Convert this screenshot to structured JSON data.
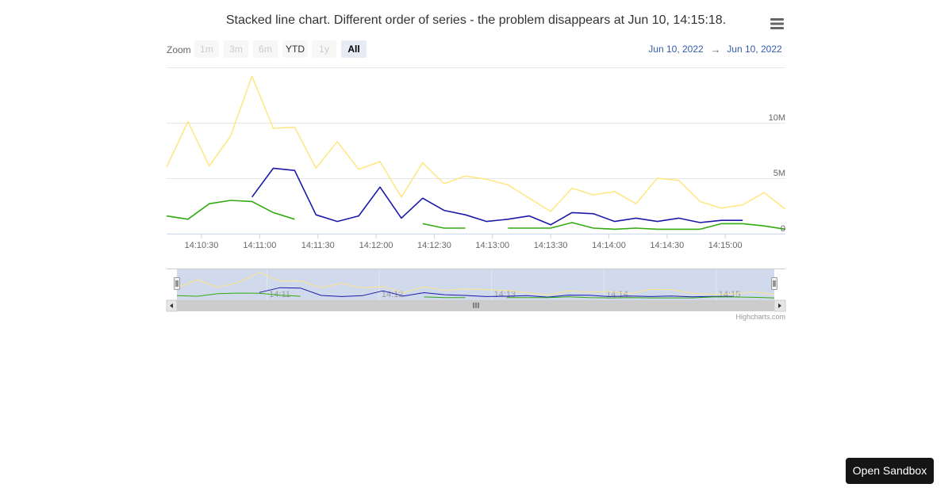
{
  "title": "Stacked line chart. Different order of series - the problem disappears at Jun 10, 14:15:18.",
  "range_selector": {
    "zoom_label": "Zoom",
    "buttons": [
      {
        "label": "1m",
        "state": "disabled"
      },
      {
        "label": "3m",
        "state": "disabled"
      },
      {
        "label": "6m",
        "state": "disabled"
      },
      {
        "label": "YTD",
        "state": "normal"
      },
      {
        "label": "1y",
        "state": "disabled"
      },
      {
        "label": "All",
        "state": "selected"
      }
    ],
    "from_date": "Jun 10, 2022",
    "arrow": "→",
    "to_date": "Jun 10, 2022"
  },
  "credits": "Highcharts.com",
  "sandbox_button": "Open Sandbox",
  "menu_icon": "hamburger-menu-icon",
  "colors": {
    "yellow": "#ffe680",
    "blue": "#1a1aa8",
    "green": "#33aa11",
    "nav_mask": "#ccd6eb",
    "date_link": "#335cad"
  },
  "chart_data": {
    "type": "line",
    "stacking": "normal",
    "x_start": "14:10:12",
    "x_interval_seconds": 11,
    "x_tick_labels": [
      "14:10:30",
      "14:11:00",
      "14:11:30",
      "14:12:00",
      "14:12:30",
      "14:13:00",
      "14:13:30",
      "14:14:00",
      "14:14:30",
      "14:15:00"
    ],
    "y_tick_labels": [
      "0",
      "5M",
      "10M"
    ],
    "ylim": [
      0,
      15000000
    ],
    "navigator_labels": [
      "14:11",
      "14:12",
      "14:13",
      "14:14",
      "14:15"
    ],
    "series": [
      {
        "color": "#ffe680",
        "stack_totals": [
          6000000,
          10100000,
          6100000,
          8800000,
          14200000,
          9500000,
          9600000,
          5900000,
          8300000,
          5800000,
          6500000,
          3300000,
          6400000,
          4500000,
          5200000,
          4900000,
          4400000,
          3200000,
          2000000,
          4100000,
          3500000,
          3800000,
          2700000,
          5000000,
          4800000,
          2900000,
          2300000,
          2600000,
          3700000,
          2200000
        ]
      },
      {
        "color": "#1a1aa8",
        "stack_totals": [
          null,
          null,
          null,
          null,
          3300000,
          5900000,
          5700000,
          1700000,
          1100000,
          1600000,
          4200000,
          1400000,
          3200000,
          2100000,
          1700000,
          1100000,
          1300000,
          1600000,
          800000,
          1900000,
          1800000,
          1100000,
          1400000,
          1100000,
          1400000,
          1000000,
          1200000,
          1200000,
          null,
          null
        ]
      },
      {
        "color": "#33aa11",
        "values": [
          1600000,
          1300000,
          2700000,
          3000000,
          2900000,
          1900000,
          1300000,
          null,
          null,
          null,
          null,
          null,
          900000,
          500000,
          500000,
          null,
          500000,
          500000,
          500000,
          1000000,
          500000,
          400000,
          500000,
          400000,
          400000,
          400000,
          900000,
          900000,
          700000,
          400000
        ]
      }
    ]
  }
}
